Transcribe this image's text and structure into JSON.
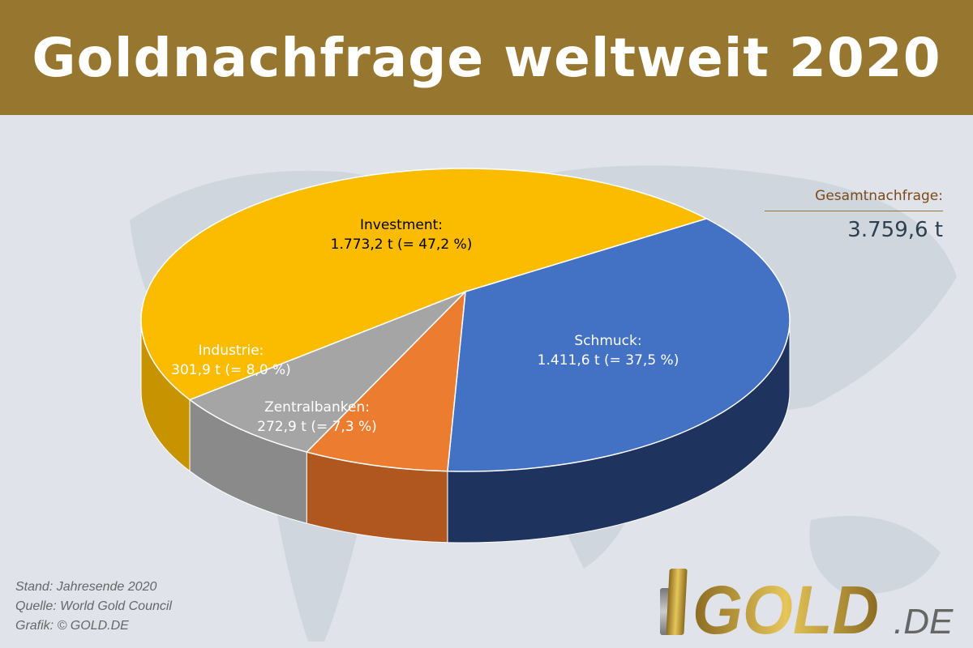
{
  "chart_data": {
    "type": "pie",
    "title": "Goldnachfrage weltweit 2020",
    "slices": [
      {
        "name": "Schmuck",
        "value": 1411.6,
        "value_label": "1.411,6 t",
        "percent_label": "37,5 %",
        "color": "#4372c4",
        "side_color": "#1f335f",
        "text_color": "#ffffff"
      },
      {
        "name": "Zentralbanken",
        "value": 272.9,
        "value_label": "272,9 t",
        "percent_label": "7,3 %",
        "color": "#ec7c30",
        "side_color": "#b0561f",
        "text_color": "#ffffff"
      },
      {
        "name": "Industrie",
        "value": 301.9,
        "value_label": "301,9 t",
        "percent_label": "8,0 %",
        "color": "#a5a5a5",
        "side_color": "#8a8a8a",
        "text_color": "#ffffff"
      },
      {
        "name": "Investment",
        "value": 1773.2,
        "value_label": "1.773,2 t",
        "percent_label": "47,2 %",
        "color": "#fbbc00",
        "side_color": "#c79400",
        "text_color": "#000000"
      }
    ],
    "legend": "none"
  },
  "total": {
    "label": "Gesamtnachfrage:",
    "value": "3.759,6 t"
  },
  "footer": [
    "Stand: Jahresende 2020",
    "Quelle: World Gold Council",
    "Grafik: © GOLD.DE"
  ],
  "logo": {
    "text": "GOLD",
    "suffix": ".DE"
  }
}
